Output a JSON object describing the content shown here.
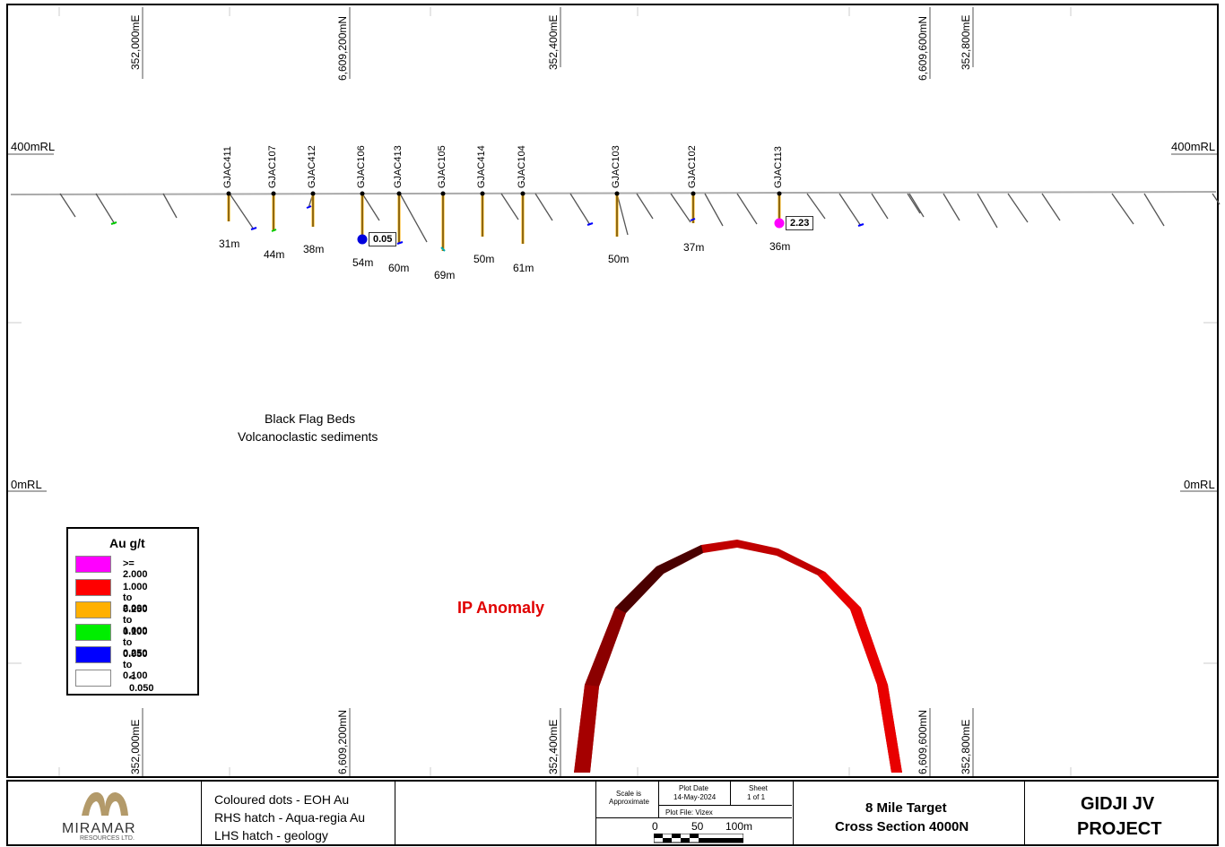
{
  "eastings_top": [
    "352,000mE",
    "352,400mE",
    "352,800mE"
  ],
  "northings_top": [
    "6,609,200mN",
    "6,609,600mN"
  ],
  "eastings_bottom": [
    "352,000mE",
    "352,400mE",
    "352,800mE"
  ],
  "northings_bottom": [
    "6,609,200mN",
    "6,609,600mN"
  ],
  "rl_labels": {
    "rl400": "400mRL",
    "rl0": "0mRL"
  },
  "holes": [
    {
      "id": "GJAC411",
      "depth": "31m"
    },
    {
      "id": "GJAC107",
      "depth": "44m"
    },
    {
      "id": "GJAC412",
      "depth": "38m"
    },
    {
      "id": "GJAC106",
      "depth": "54m"
    },
    {
      "id": "GJAC413",
      "depth": "60m"
    },
    {
      "id": "GJAC105",
      "depth": "69m"
    },
    {
      "id": "GJAC414",
      "depth": "50m"
    },
    {
      "id": "GJAC104",
      "depth": "61m"
    },
    {
      "id": "GJAC103",
      "depth": "50m"
    },
    {
      "id": "GJAC102",
      "depth": "37m"
    },
    {
      "id": "GJAC113",
      "depth": "36m"
    }
  ],
  "eoh_values": [
    {
      "hole": "GJAC106",
      "value": "0.05",
      "color": "#0000dd"
    },
    {
      "hole": "GJAC113",
      "value": "2.23",
      "color": "#ff00ff"
    }
  ],
  "geology": {
    "line1": "Black Flag Beds",
    "line2": "Volcanoclastic sediments"
  },
  "anomaly": {
    "label": "IP Anomaly",
    "color": "#e00000"
  },
  "legend": {
    "title": "Au g/t",
    "items": [
      {
        "label": ">= 2.000",
        "color": "#ff00ff"
      },
      {
        "label": "1.000 to 2.000",
        "color": "#ff0000"
      },
      {
        "label": "0.250 to 1.000",
        "color": "#ffb000"
      },
      {
        "label": "0.100 to 0.250",
        "color": "#00ee00"
      },
      {
        "label": "0.050 to 0.100",
        "color": "#0000ff"
      },
      {
        "label": "< 0.050",
        "color": "#ffffff"
      }
    ]
  },
  "title_block": {
    "company_name": "MIRAMAR",
    "company_sub": "RESOURCES LTD.",
    "notes": [
      "Coloured dots - EOH Au",
      "RHS hatch - Aqua-regia Au",
      "LHS hatch - geology"
    ],
    "scale_label": "Scale is Approximate",
    "plot_date_label": "Plot Date",
    "plot_date": "14-May-2024",
    "sheet_label": "Sheet",
    "sheet_value": "1 of 1",
    "plot_file": "Plot File: Vizex",
    "scalebar": [
      "0",
      "50",
      "100m"
    ],
    "target_line1": "8 Mile Target",
    "target_line2": "Cross Section 4000N",
    "project_line1": "GIDJI JV",
    "project_line2": "PROJECT"
  }
}
